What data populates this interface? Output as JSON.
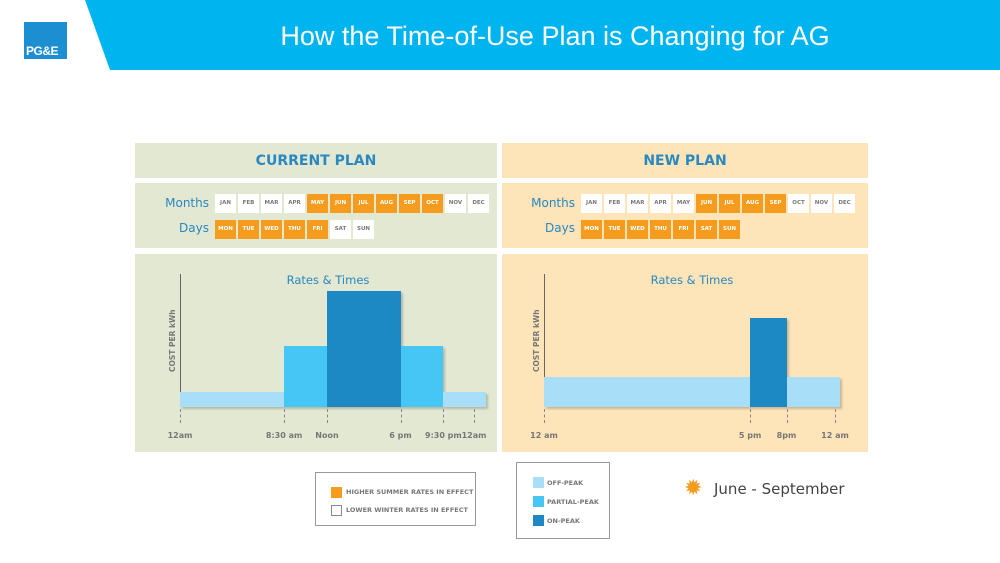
{
  "header": {
    "title": "How the Time-of-Use Plan is Changing for AG",
    "logo_text": "PG&E"
  },
  "labels": {
    "months": "Months",
    "days": "Days",
    "chart_title": "Rates & Times",
    "y_axis": "COST PER kWh"
  },
  "colors": {
    "summer": "#f59c1e",
    "off_peak": "#a8def7",
    "partial_peak": "#45c6f4",
    "on_peak": "#1c88c4"
  },
  "current_plan": {
    "title": "CURRENT PLAN",
    "months": [
      {
        "l": "JAN",
        "on": false
      },
      {
        "l": "FEB",
        "on": false
      },
      {
        "l": "MAR",
        "on": false
      },
      {
        "l": "APR",
        "on": false
      },
      {
        "l": "MAY",
        "on": true
      },
      {
        "l": "JUN",
        "on": true
      },
      {
        "l": "JUL",
        "on": true
      },
      {
        "l": "AUG",
        "on": true
      },
      {
        "l": "SEP",
        "on": true
      },
      {
        "l": "OCT",
        "on": true
      },
      {
        "l": "NOV",
        "on": false
      },
      {
        "l": "DEC",
        "on": false
      }
    ],
    "days": [
      {
        "l": "MON",
        "on": true
      },
      {
        "l": "TUE",
        "on": true
      },
      {
        "l": "WED",
        "on": true
      },
      {
        "l": "THU",
        "on": true
      },
      {
        "l": "FRI",
        "on": true
      },
      {
        "l": "SAT",
        "on": false
      },
      {
        "l": "SUN",
        "on": false
      }
    ],
    "ticks": [
      {
        "l": "12am",
        "h": 0
      },
      {
        "l": "8:30 am",
        "h": 8.5
      },
      {
        "l": "Noon",
        "h": 12
      },
      {
        "l": "6 pm",
        "h": 18
      },
      {
        "l": "9:30 pm",
        "h": 21.5
      },
      {
        "l": "12am",
        "h": 24
      }
    ],
    "periods": [
      {
        "type": "off_peak",
        "start": 0,
        "end": 8.5,
        "level": 1
      },
      {
        "type": "partial_peak",
        "start": 8.5,
        "end": 12,
        "level": 4
      },
      {
        "type": "on_peak",
        "start": 12,
        "end": 18,
        "level": 7.6
      },
      {
        "type": "partial_peak",
        "start": 18,
        "end": 21.5,
        "level": 4
      },
      {
        "type": "off_peak",
        "start": 21.5,
        "end": 25,
        "level": 1
      }
    ]
  },
  "new_plan": {
    "title": "NEW PLAN",
    "months": [
      {
        "l": "JAN",
        "on": false
      },
      {
        "l": "FEB",
        "on": false
      },
      {
        "l": "MAR",
        "on": false
      },
      {
        "l": "APR",
        "on": false
      },
      {
        "l": "MAY",
        "on": false
      },
      {
        "l": "JUN",
        "on": true
      },
      {
        "l": "JUL",
        "on": true
      },
      {
        "l": "AUG",
        "on": true
      },
      {
        "l": "SEP",
        "on": true
      },
      {
        "l": "OCT",
        "on": false
      },
      {
        "l": "NOV",
        "on": false
      },
      {
        "l": "DEC",
        "on": false
      }
    ],
    "days": [
      {
        "l": "MON",
        "on": true
      },
      {
        "l": "TUE",
        "on": true
      },
      {
        "l": "WED",
        "on": true
      },
      {
        "l": "THU",
        "on": true
      },
      {
        "l": "FRI",
        "on": true
      },
      {
        "l": "SAT",
        "on": true
      },
      {
        "l": "SUN",
        "on": true
      }
    ],
    "ticks": [
      {
        "l": "12 am",
        "h": 0
      },
      {
        "l": "5 pm",
        "h": 17
      },
      {
        "l": "8pm",
        "h": 20
      },
      {
        "l": "12 am",
        "h": 24
      }
    ],
    "periods": [
      {
        "type": "off_peak",
        "start": 0,
        "end": 17,
        "level": 2
      },
      {
        "type": "on_peak",
        "start": 17,
        "end": 20,
        "level": 5.9
      },
      {
        "type": "off_peak",
        "start": 20,
        "end": 24.4,
        "level": 2
      }
    ]
  },
  "legend1": {
    "summer": "HIGHER SUMMER RATES IN EFFECT",
    "winter": "LOWER WINTER RATES IN EFFECT"
  },
  "legend2": {
    "off_peak": "OFF-PEAK",
    "partial_peak": "PARTIAL-PEAK",
    "on_peak": "ON-PEAK"
  },
  "season": "June - September"
}
